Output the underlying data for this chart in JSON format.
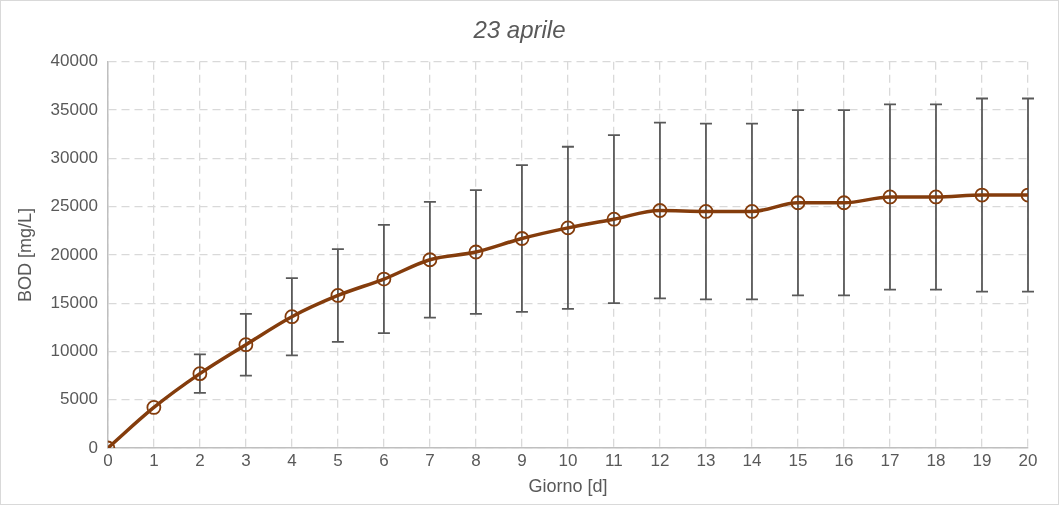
{
  "chart_data": {
    "type": "line",
    "title": "23 aprile",
    "xlabel": "Giorno [d]",
    "ylabel": "BOD [mg/L]",
    "x": [
      0,
      1,
      2,
      3,
      4,
      5,
      6,
      7,
      8,
      9,
      10,
      11,
      12,
      13,
      14,
      15,
      16,
      17,
      18,
      19,
      20
    ],
    "series": [
      {
        "color": "#843c0c",
        "values": [
          0,
          4200,
          7700,
          10700,
          13600,
          15800,
          17500,
          19500,
          20300,
          21700,
          22800,
          23700,
          24600,
          24500,
          24500,
          25400,
          25400,
          26000,
          26000,
          26200,
          26200
        ],
        "errors": [
          null,
          null,
          2000,
          3200,
          4000,
          4800,
          5600,
          6000,
          6400,
          7600,
          8400,
          8700,
          9100,
          9100,
          9100,
          9600,
          9600,
          9600,
          9600,
          10000,
          10000
        ]
      }
    ],
    "xlim": [
      0,
      20
    ],
    "xticks": [
      0,
      1,
      2,
      3,
      4,
      5,
      6,
      7,
      8,
      9,
      10,
      11,
      12,
      13,
      14,
      15,
      16,
      17,
      18,
      19,
      20
    ],
    "ylim": [
      0,
      40000
    ],
    "yticks": [
      0,
      5000,
      10000,
      15000,
      20000,
      25000,
      30000,
      35000,
      40000
    ],
    "grid": true,
    "legend": false,
    "marker": "circle",
    "line_style": "solid"
  }
}
